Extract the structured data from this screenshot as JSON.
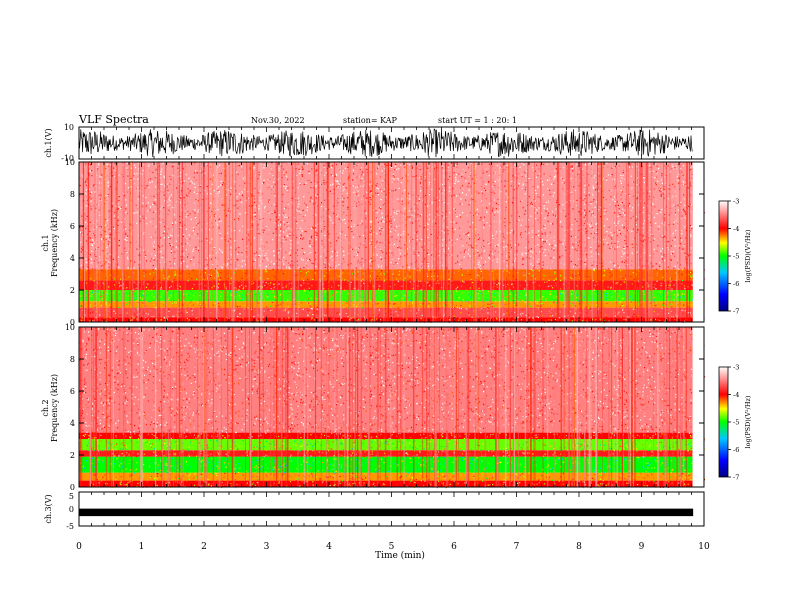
{
  "header": {
    "title": "VLF Spectra",
    "date": "Nov.30, 2022",
    "station": "station= KAP",
    "start": "start UT = 1 : 20: 1"
  },
  "chart_data": [
    {
      "type": "line",
      "name": "ch1-waveform",
      "ylabel": "ch.1(V)",
      "ylim": [
        -10,
        10
      ],
      "xlim": [
        0,
        10
      ],
      "ytick_labels": [
        "10",
        "-10"
      ],
      "data_xmax": 9.82,
      "amplitude_range": [
        -9,
        9
      ]
    },
    {
      "type": "heatmap",
      "name": "ch1-spectrogram",
      "ylabel": "ch.1\nFrequency (kHz)",
      "ylim": [
        0,
        10
      ],
      "xlim": [
        0,
        10
      ],
      "yticks": [
        0,
        2,
        4,
        6,
        8,
        10
      ],
      "bands_khz": [
        {
          "from": 0.0,
          "to": 0.3,
          "level": -4.0
        },
        {
          "from": 0.3,
          "to": 0.9,
          "level": -3.7
        },
        {
          "from": 0.9,
          "to": 1.3,
          "level": -4.3
        },
        {
          "from": 1.3,
          "to": 2.0,
          "level": -4.9
        },
        {
          "from": 2.0,
          "to": 2.6,
          "level": -3.9
        },
        {
          "from": 2.6,
          "to": 3.3,
          "level": -4.2
        },
        {
          "from": 3.3,
          "to": 10.0,
          "level": -3.4
        }
      ]
    },
    {
      "type": "heatmap",
      "name": "ch2-spectrogram",
      "ylabel": "ch.2\nFrequency (kHz)",
      "ylim": [
        0,
        10
      ],
      "xlim": [
        0,
        10
      ],
      "yticks": [
        0,
        2,
        4,
        6,
        8,
        10
      ],
      "bands_khz": [
        {
          "from": 0.0,
          "to": 0.4,
          "level": -4.0
        },
        {
          "from": 0.4,
          "to": 0.9,
          "level": -4.3
        },
        {
          "from": 0.9,
          "to": 1.9,
          "level": -5.0
        },
        {
          "from": 1.9,
          "to": 2.3,
          "level": -3.9
        },
        {
          "from": 2.3,
          "to": 3.0,
          "level": -4.8
        },
        {
          "from": 3.0,
          "to": 3.4,
          "level": -4.0
        },
        {
          "from": 3.4,
          "to": 10.0,
          "level": -3.5
        }
      ]
    },
    {
      "type": "line",
      "name": "ch3-waveform",
      "ylabel": "ch.3(V)",
      "ylim": [
        -5,
        5
      ],
      "xlim": [
        0,
        10
      ],
      "ytick_labels": [
        "5",
        "0",
        "-5"
      ],
      "data_xmax": 9.82,
      "level": -1.0,
      "amplitude": 0.25
    }
  ],
  "colorbar": {
    "label": "log(PSD)(V²/Hz)",
    "range": [
      -7,
      -3
    ],
    "tick_labels": [
      "-3",
      "-4",
      "-5",
      "-6",
      "-7"
    ],
    "colors": [
      "#000080",
      "#0000ff",
      "#00c8ff",
      "#00ff00",
      "#ffff00",
      "#ff0000",
      "#ffffff"
    ]
  },
  "x_axis": {
    "label": "Time (min)",
    "tick_labels": [
      "0",
      "1",
      "2",
      "3",
      "4",
      "5",
      "6",
      "7",
      "8",
      "9",
      "10"
    ]
  }
}
